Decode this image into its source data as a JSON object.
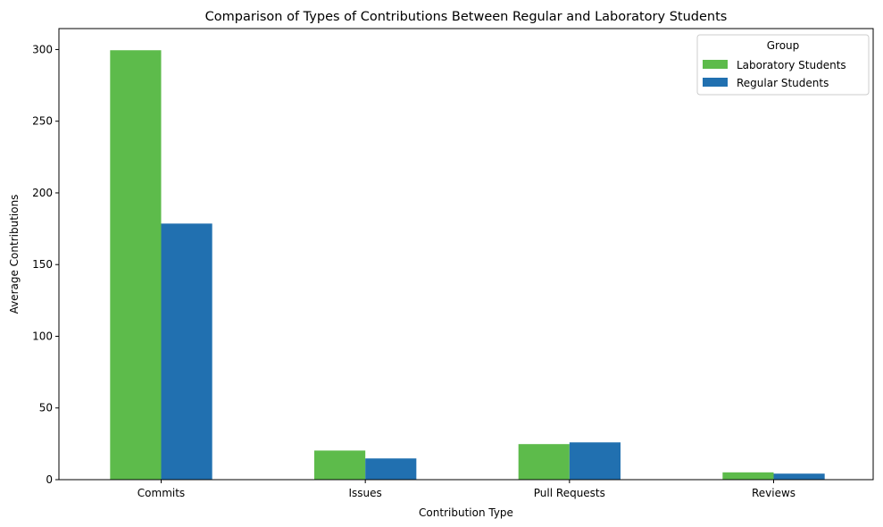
{
  "chart_data": {
    "type": "bar",
    "title": "Comparison of Types of Contributions Between Regular and Laboratory Students",
    "xlabel": "Contribution Type",
    "ylabel": "Average Contributions",
    "categories": [
      "Commits",
      "Issues",
      "Pull Requests",
      "Reviews"
    ],
    "series": [
      {
        "name": "Laboratory Students",
        "color": "#5dbb4b",
        "values": [
          299.5,
          20.3,
          24.8,
          5.1
        ]
      },
      {
        "name": "Regular Students",
        "color": "#2170b0",
        "values": [
          178.6,
          14.8,
          26.0,
          4.2
        ]
      }
    ],
    "ylim": [
      0,
      314.6
    ],
    "yticks": [
      0,
      50,
      100,
      150,
      200,
      250,
      300
    ],
    "grid": false,
    "legend": {
      "title": "Group",
      "position": "top-right"
    }
  }
}
